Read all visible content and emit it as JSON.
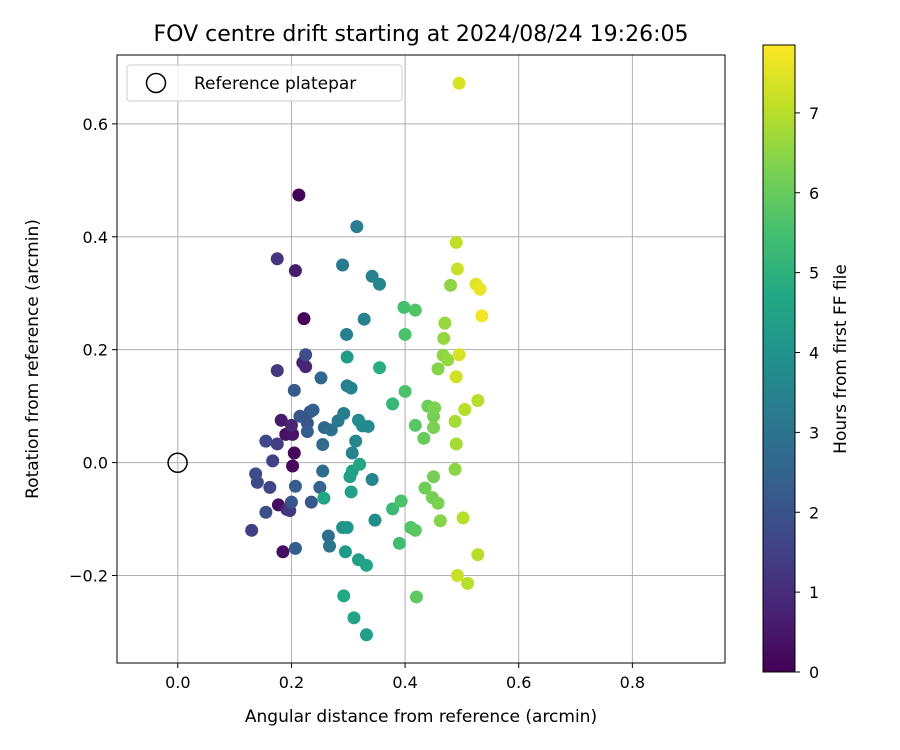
{
  "chart_data": {
    "type": "scatter",
    "title": "FOV centre drift starting at 2024/08/24 19:26:05",
    "xlabel": "Angular distance from reference (arcmin)",
    "ylabel": "Rotation from reference (arcmin)",
    "xlim": [
      -0.107,
      0.963
    ],
    "ylim": [
      -0.355,
      0.722
    ],
    "x_ticks": [
      0.0,
      0.2,
      0.4,
      0.6,
      0.8
    ],
    "x_tick_labels": [
      "0.0",
      "0.2",
      "0.4",
      "0.6",
      "0.8"
    ],
    "y_ticks": [
      -0.2,
      0.0,
      0.2,
      0.4,
      0.6
    ],
    "y_tick_labels": [
      "−0.2",
      "0.0",
      "0.2",
      "0.4",
      "0.6"
    ],
    "grid": true,
    "legend": {
      "position": "top-left",
      "entries": [
        {
          "label": "Reference platepar",
          "marker": "open-circle",
          "x": 0.0,
          "y": 0.0
        }
      ]
    },
    "colorbar": {
      "label": "Hours from first FF file",
      "range": [
        0,
        7.85
      ],
      "ticks": [
        0,
        1,
        2,
        3,
        4,
        5,
        6,
        7
      ],
      "tick_labels": [
        "0",
        "1",
        "2",
        "3",
        "4",
        "5",
        "6",
        "7"
      ],
      "colormap": "viridis"
    },
    "series": [
      {
        "points": [
          {
            "x": 0.213,
            "y": 0.474,
            "c": 0.05
          },
          {
            "x": 0.222,
            "y": 0.255,
            "c": 0.1
          },
          {
            "x": 0.205,
            "y": 0.017,
            "c": 0.15
          },
          {
            "x": 0.202,
            "y": -0.006,
            "c": 0.2
          },
          {
            "x": 0.177,
            "y": -0.075,
            "c": 0.25
          },
          {
            "x": 0.185,
            "y": -0.158,
            "c": 0.3
          },
          {
            "x": 0.19,
            "y": 0.05,
            "c": 0.35
          },
          {
            "x": 0.202,
            "y": 0.05,
            "c": 0.45
          },
          {
            "x": 0.182,
            "y": 0.075,
            "c": 0.55
          },
          {
            "x": 0.207,
            "y": 0.34,
            "c": 0.6
          },
          {
            "x": 0.22,
            "y": 0.177,
            "c": 0.7
          },
          {
            "x": 0.225,
            "y": 0.17,
            "c": 0.8
          },
          {
            "x": 0.2,
            "y": 0.066,
            "c": 0.85
          },
          {
            "x": 0.192,
            "y": -0.083,
            "c": 0.95
          },
          {
            "x": 0.175,
            "y": 0.361,
            "c": 1.15
          },
          {
            "x": 0.175,
            "y": 0.163,
            "c": 1.3
          },
          {
            "x": 0.197,
            "y": -0.085,
            "c": 1.3
          },
          {
            "x": 0.175,
            "y": 0.033,
            "c": 1.4
          },
          {
            "x": 0.13,
            "y": -0.12,
            "c": 1.45
          },
          {
            "x": 0.167,
            "y": 0.003,
            "c": 1.5
          },
          {
            "x": 0.162,
            "y": -0.044,
            "c": 1.6
          },
          {
            "x": 0.155,
            "y": 0.038,
            "c": 1.7
          },
          {
            "x": 0.14,
            "y": -0.035,
            "c": 1.75
          },
          {
            "x": 0.137,
            "y": -0.02,
            "c": 1.8
          },
          {
            "x": 0.155,
            "y": -0.088,
            "c": 1.9
          },
          {
            "x": 0.225,
            "y": 0.191,
            "c": 1.9
          },
          {
            "x": 0.233,
            "y": 0.09,
            "c": 2.0
          },
          {
            "x": 0.228,
            "y": 0.07,
            "c": 2.0
          },
          {
            "x": 0.215,
            "y": 0.082,
            "c": 2.1
          },
          {
            "x": 0.2,
            "y": -0.07,
            "c": 2.1
          },
          {
            "x": 0.205,
            "y": 0.128,
            "c": 2.2
          },
          {
            "x": 0.235,
            "y": -0.07,
            "c": 2.2
          },
          {
            "x": 0.228,
            "y": 0.055,
            "c": 2.3
          },
          {
            "x": 0.207,
            "y": -0.042,
            "c": 2.3
          },
          {
            "x": 0.207,
            "y": -0.152,
            "c": 2.4
          },
          {
            "x": 0.238,
            "y": 0.093,
            "c": 2.4
          },
          {
            "x": 0.25,
            "y": -0.044,
            "c": 2.5
          },
          {
            "x": 0.252,
            "y": 0.15,
            "c": 2.6
          },
          {
            "x": 0.258,
            "y": 0.062,
            "c": 2.6
          },
          {
            "x": 0.255,
            "y": 0.032,
            "c": 2.7
          },
          {
            "x": 0.255,
            "y": -0.015,
            "c": 2.8
          },
          {
            "x": 0.265,
            "y": -0.13,
            "c": 2.8
          },
          {
            "x": 0.267,
            "y": -0.148,
            "c": 3.0
          },
          {
            "x": 0.27,
            "y": 0.058,
            "c": 2.9
          },
          {
            "x": 0.282,
            "y": 0.074,
            "c": 3.1
          },
          {
            "x": 0.29,
            "y": 0.35,
            "c": 3.2
          },
          {
            "x": 0.292,
            "y": 0.087,
            "c": 3.3
          },
          {
            "x": 0.297,
            "y": 0.227,
            "c": 3.4
          },
          {
            "x": 0.298,
            "y": 0.136,
            "c": 3.4
          },
          {
            "x": 0.305,
            "y": 0.132,
            "c": 3.5
          },
          {
            "x": 0.307,
            "y": 0.017,
            "c": 3.5
          },
          {
            "x": 0.313,
            "y": 0.038,
            "c": 3.6
          },
          {
            "x": 0.315,
            "y": 0.418,
            "c": 3.3
          },
          {
            "x": 0.318,
            "y": 0.075,
            "c": 3.7
          },
          {
            "x": 0.325,
            "y": 0.065,
            "c": 3.7
          },
          {
            "x": 0.328,
            "y": 0.254,
            "c": 3.5
          },
          {
            "x": 0.335,
            "y": 0.064,
            "c": 3.7
          },
          {
            "x": 0.342,
            "y": 0.33,
            "c": 3.5
          },
          {
            "x": 0.342,
            "y": -0.03,
            "c": 3.6
          },
          {
            "x": 0.347,
            "y": -0.102,
            "c": 3.8
          },
          {
            "x": 0.355,
            "y": 0.316,
            "c": 3.6
          },
          {
            "x": 0.29,
            "y": -0.115,
            "c": 4.0
          },
          {
            "x": 0.298,
            "y": -0.115,
            "c": 4.1
          },
          {
            "x": 0.295,
            "y": -0.158,
            "c": 4.2
          },
          {
            "x": 0.298,
            "y": 0.187,
            "c": 4.3
          },
          {
            "x": 0.303,
            "y": -0.025,
            "c": 4.4
          },
          {
            "x": 0.307,
            "y": -0.015,
            "c": 4.5
          },
          {
            "x": 0.305,
            "y": -0.052,
            "c": 4.5
          },
          {
            "x": 0.257,
            "y": -0.063,
            "c": 4.6
          },
          {
            "x": 0.292,
            "y": -0.236,
            "c": 4.7
          },
          {
            "x": 0.31,
            "y": -0.275,
            "c": 4.6
          },
          {
            "x": 0.318,
            "y": -0.172,
            "c": 4.4
          },
          {
            "x": 0.32,
            "y": -0.003,
            "c": 4.6
          },
          {
            "x": 0.332,
            "y": -0.182,
            "c": 4.6
          },
          {
            "x": 0.332,
            "y": -0.305,
            "c": 4.4
          },
          {
            "x": 0.355,
            "y": 0.168,
            "c": 4.9
          },
          {
            "x": 0.378,
            "y": 0.104,
            "c": 5.2
          },
          {
            "x": 0.378,
            "y": -0.082,
            "c": 5.3
          },
          {
            "x": 0.39,
            "y": -0.143,
            "c": 5.4
          },
          {
            "x": 0.393,
            "y": -0.068,
            "c": 5.6
          },
          {
            "x": 0.398,
            "y": 0.275,
            "c": 5.5
          },
          {
            "x": 0.4,
            "y": 0.227,
            "c": 5.6
          },
          {
            "x": 0.4,
            "y": 0.126,
            "c": 5.6
          },
          {
            "x": 0.41,
            "y": -0.115,
            "c": 5.7
          },
          {
            "x": 0.418,
            "y": 0.27,
            "c": 5.7
          },
          {
            "x": 0.418,
            "y": -0.12,
            "c": 5.8
          },
          {
            "x": 0.418,
            "y": 0.066,
            "c": 5.8
          },
          {
            "x": 0.42,
            "y": -0.238,
            "c": 5.9
          },
          {
            "x": 0.433,
            "y": 0.043,
            "c": 6.0
          },
          {
            "x": 0.435,
            "y": -0.045,
            "c": 6.1
          },
          {
            "x": 0.44,
            "y": 0.1,
            "c": 6.1
          },
          {
            "x": 0.448,
            "y": -0.062,
            "c": 6.2
          },
          {
            "x": 0.45,
            "y": -0.025,
            "c": 6.2
          },
          {
            "x": 0.45,
            "y": 0.082,
            "c": 6.2
          },
          {
            "x": 0.452,
            "y": 0.097,
            "c": 6.3
          },
          {
            "x": 0.45,
            "y": 0.062,
            "c": 6.3
          },
          {
            "x": 0.458,
            "y": -0.072,
            "c": 6.3
          },
          {
            "x": 0.458,
            "y": 0.166,
            "c": 6.4
          },
          {
            "x": 0.462,
            "y": -0.103,
            "c": 6.4
          },
          {
            "x": 0.467,
            "y": 0.19,
            "c": 6.5
          },
          {
            "x": 0.468,
            "y": 0.22,
            "c": 6.6
          },
          {
            "x": 0.47,
            "y": 0.247,
            "c": 6.6
          },
          {
            "x": 0.475,
            "y": 0.182,
            "c": 6.6
          },
          {
            "x": 0.48,
            "y": 0.314,
            "c": 6.5
          },
          {
            "x": 0.488,
            "y": -0.012,
            "c": 6.5
          },
          {
            "x": 0.488,
            "y": 0.073,
            "c": 6.8
          },
          {
            "x": 0.49,
            "y": 0.033,
            "c": 6.8
          },
          {
            "x": 0.49,
            "y": 0.39,
            "c": 7.1
          },
          {
            "x": 0.492,
            "y": 0.343,
            "c": 7.2
          },
          {
            "x": 0.49,
            "y": 0.152,
            "c": 7.3
          },
          {
            "x": 0.492,
            "y": -0.2,
            "c": 7.2
          },
          {
            "x": 0.495,
            "y": 0.191,
            "c": 7.4
          },
          {
            "x": 0.495,
            "y": 0.672,
            "c": 7.4
          },
          {
            "x": 0.502,
            "y": -0.098,
            "c": 7.0
          },
          {
            "x": 0.505,
            "y": 0.094,
            "c": 7.0
          },
          {
            "x": 0.51,
            "y": -0.214,
            "c": 7.0
          },
          {
            "x": 0.525,
            "y": 0.316,
            "c": 7.5
          },
          {
            "x": 0.528,
            "y": 0.11,
            "c": 7.0
          },
          {
            "x": 0.528,
            "y": -0.163,
            "c": 7.0
          },
          {
            "x": 0.532,
            "y": 0.307,
            "c": 7.6
          },
          {
            "x": 0.535,
            "y": 0.26,
            "c": 7.7
          }
        ]
      }
    ]
  }
}
